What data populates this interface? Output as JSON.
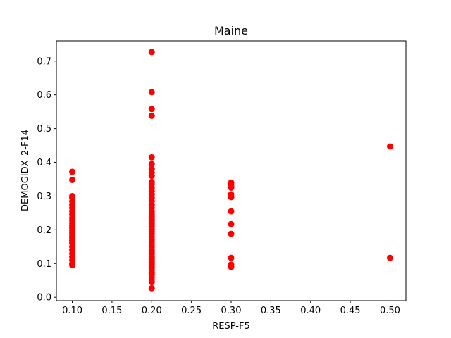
{
  "chart_data": {
    "type": "scatter",
    "title": "Maine",
    "xlabel": "RESP-F5",
    "ylabel": "DEMOGIDX_2-F14",
    "xlim": [
      0.08,
      0.52
    ],
    "ylim": [
      -0.01,
      0.76
    ],
    "xticks": [
      "0.10",
      "0.15",
      "0.20",
      "0.25",
      "0.30",
      "0.35",
      "0.40",
      "0.45",
      "0.50"
    ],
    "yticks": [
      "0.0",
      "0.1",
      "0.2",
      "0.3",
      "0.4",
      "0.5",
      "0.6",
      "0.7"
    ],
    "grid": false,
    "marker_color": "#ff0000",
    "series": [
      {
        "points": [
          [
            0.1,
            0.372
          ],
          [
            0.1,
            0.348
          ],
          [
            0.1,
            0.3
          ],
          [
            0.1,
            0.295
          ],
          [
            0.1,
            0.285
          ],
          [
            0.1,
            0.275
          ],
          [
            0.1,
            0.265
          ],
          [
            0.1,
            0.255
          ],
          [
            0.1,
            0.245
          ],
          [
            0.1,
            0.235
          ],
          [
            0.1,
            0.228
          ],
          [
            0.1,
            0.22
          ],
          [
            0.1,
            0.212
          ],
          [
            0.1,
            0.205
          ],
          [
            0.1,
            0.198
          ],
          [
            0.1,
            0.19
          ],
          [
            0.1,
            0.182
          ],
          [
            0.1,
            0.175
          ],
          [
            0.1,
            0.168
          ],
          [
            0.1,
            0.16
          ],
          [
            0.1,
            0.15
          ],
          [
            0.1,
            0.14
          ],
          [
            0.1,
            0.13
          ],
          [
            0.1,
            0.12
          ],
          [
            0.1,
            0.11
          ],
          [
            0.1,
            0.1
          ],
          [
            0.1,
            0.095
          ],
          [
            0.2,
            0.727
          ],
          [
            0.2,
            0.608
          ],
          [
            0.2,
            0.558
          ],
          [
            0.2,
            0.538
          ],
          [
            0.2,
            0.415
          ],
          [
            0.2,
            0.395
          ],
          [
            0.2,
            0.38
          ],
          [
            0.2,
            0.37
          ],
          [
            0.2,
            0.36
          ],
          [
            0.2,
            0.342
          ],
          [
            0.2,
            0.335
          ],
          [
            0.2,
            0.325
          ],
          [
            0.2,
            0.315
          ],
          [
            0.2,
            0.305
          ],
          [
            0.2,
            0.295
          ],
          [
            0.2,
            0.285
          ],
          [
            0.2,
            0.275
          ],
          [
            0.2,
            0.265
          ],
          [
            0.2,
            0.255
          ],
          [
            0.2,
            0.248
          ],
          [
            0.2,
            0.24
          ],
          [
            0.2,
            0.232
          ],
          [
            0.2,
            0.225
          ],
          [
            0.2,
            0.218
          ],
          [
            0.2,
            0.21
          ],
          [
            0.2,
            0.202
          ],
          [
            0.2,
            0.195
          ],
          [
            0.2,
            0.188
          ],
          [
            0.2,
            0.18
          ],
          [
            0.2,
            0.172
          ],
          [
            0.2,
            0.165
          ],
          [
            0.2,
            0.158
          ],
          [
            0.2,
            0.15
          ],
          [
            0.2,
            0.142
          ],
          [
            0.2,
            0.135
          ],
          [
            0.2,
            0.128
          ],
          [
            0.2,
            0.12
          ],
          [
            0.2,
            0.112
          ],
          [
            0.2,
            0.105
          ],
          [
            0.2,
            0.098
          ],
          [
            0.2,
            0.09
          ],
          [
            0.2,
            0.082
          ],
          [
            0.2,
            0.075
          ],
          [
            0.2,
            0.068
          ],
          [
            0.2,
            0.06
          ],
          [
            0.2,
            0.052
          ],
          [
            0.2,
            0.045
          ],
          [
            0.2,
            0.027
          ],
          [
            0.3,
            0.34
          ],
          [
            0.3,
            0.33
          ],
          [
            0.3,
            0.325
          ],
          [
            0.3,
            0.305
          ],
          [
            0.3,
            0.297
          ],
          [
            0.3,
            0.255
          ],
          [
            0.3,
            0.217
          ],
          [
            0.3,
            0.188
          ],
          [
            0.3,
            0.117
          ],
          [
            0.3,
            0.097
          ],
          [
            0.3,
            0.09
          ],
          [
            0.5,
            0.447
          ],
          [
            0.5,
            0.117
          ]
        ]
      }
    ]
  }
}
